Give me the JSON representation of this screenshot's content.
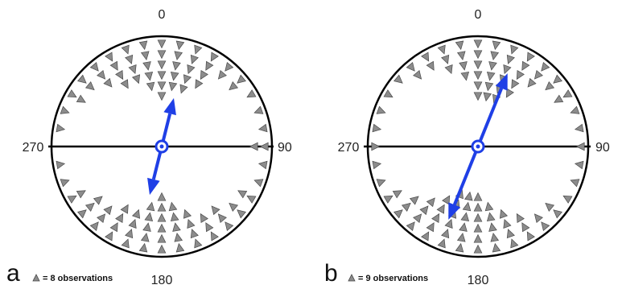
{
  "chart_data": [
    {
      "type": "circular-scatter",
      "panel": "a",
      "direction_unit": "degrees",
      "axis_labels": [
        "0",
        "90",
        "180",
        "270"
      ],
      "symbol_key": "= 8 observations",
      "observations_per_symbol": 8,
      "mean_axis_deg": [
        14,
        194
      ],
      "marker_color": "#8c8c8c",
      "arrow_color": "#1f3fe6",
      "bins": [
        {
          "angle": 0,
          "count": 6
        },
        {
          "angle": 10,
          "count": 5
        },
        {
          "angle": 20,
          "count": 5
        },
        {
          "angle": 30,
          "count": 4
        },
        {
          "angle": 40,
          "count": 2
        },
        {
          "angle": 50,
          "count": 2
        },
        {
          "angle": 60,
          "count": 1
        },
        {
          "angle": 70,
          "count": 1
        },
        {
          "angle": 80,
          "count": 1
        },
        {
          "angle": 90,
          "count": 2
        },
        {
          "angle": 100,
          "count": 1
        },
        {
          "angle": 110,
          "count": 1
        },
        {
          "angle": 120,
          "count": 2
        },
        {
          "angle": 130,
          "count": 2
        },
        {
          "angle": 140,
          "count": 3
        },
        {
          "angle": 150,
          "count": 3
        },
        {
          "angle": 160,
          "count": 4
        },
        {
          "angle": 170,
          "count": 5
        },
        {
          "angle": 180,
          "count": 6
        },
        {
          "angle": 190,
          "count": 5
        },
        {
          "angle": 200,
          "count": 4
        },
        {
          "angle": 210,
          "count": 4
        },
        {
          "angle": 220,
          "count": 3
        },
        {
          "angle": 230,
          "count": 3
        },
        {
          "angle": 240,
          "count": 2
        },
        {
          "angle": 250,
          "count": 1
        },
        {
          "angle": 260,
          "count": 1
        },
        {
          "angle": 270,
          "count": 0
        },
        {
          "angle": 280,
          "count": 1
        },
        {
          "angle": 290,
          "count": 1
        },
        {
          "angle": 300,
          "count": 2
        },
        {
          "angle": 310,
          "count": 2
        },
        {
          "angle": 320,
          "count": 3
        },
        {
          "angle": 330,
          "count": 4
        },
        {
          "angle": 340,
          "count": 4
        },
        {
          "angle": 350,
          "count": 5
        }
      ]
    },
    {
      "type": "circular-scatter",
      "panel": "b",
      "direction_unit": "degrees",
      "axis_labels": [
        "0",
        "90",
        "180",
        "270"
      ],
      "symbol_key": "= 9 observations",
      "observations_per_symbol": 9,
      "mean_axis_deg": [
        22,
        202
      ],
      "marker_color": "#8c8c8c",
      "arrow_color": "#1f3fe6",
      "bins": [
        {
          "angle": 0,
          "count": 6
        },
        {
          "angle": 10,
          "count": 6
        },
        {
          "angle": 20,
          "count": 6
        },
        {
          "angle": 30,
          "count": 5
        },
        {
          "angle": 40,
          "count": 3
        },
        {
          "angle": 50,
          "count": 2
        },
        {
          "angle": 60,
          "count": 2
        },
        {
          "angle": 70,
          "count": 1
        },
        {
          "angle": 80,
          "count": 1
        },
        {
          "angle": 90,
          "count": 1
        },
        {
          "angle": 100,
          "count": 1
        },
        {
          "angle": 110,
          "count": 1
        },
        {
          "angle": 120,
          "count": 1
        },
        {
          "angle": 130,
          "count": 2
        },
        {
          "angle": 140,
          "count": 2
        },
        {
          "angle": 150,
          "count": 3
        },
        {
          "angle": 160,
          "count": 4
        },
        {
          "angle": 170,
          "count": 5
        },
        {
          "angle": 180,
          "count": 6
        },
        {
          "angle": 190,
          "count": 6
        },
        {
          "angle": 200,
          "count": 6
        },
        {
          "angle": 210,
          "count": 5
        },
        {
          "angle": 220,
          "count": 4
        },
        {
          "angle": 230,
          "count": 3
        },
        {
          "angle": 240,
          "count": 2
        },
        {
          "angle": 250,
          "count": 1
        },
        {
          "angle": 260,
          "count": 1
        },
        {
          "angle": 270,
          "count": 1
        },
        {
          "angle": 280,
          "count": 1
        },
        {
          "angle": 290,
          "count": 1
        },
        {
          "angle": 300,
          "count": 1
        },
        {
          "angle": 310,
          "count": 1
        },
        {
          "angle": 320,
          "count": 2
        },
        {
          "angle": 330,
          "count": 2
        },
        {
          "angle": 340,
          "count": 3
        },
        {
          "angle": 350,
          "count": 4
        }
      ]
    }
  ]
}
